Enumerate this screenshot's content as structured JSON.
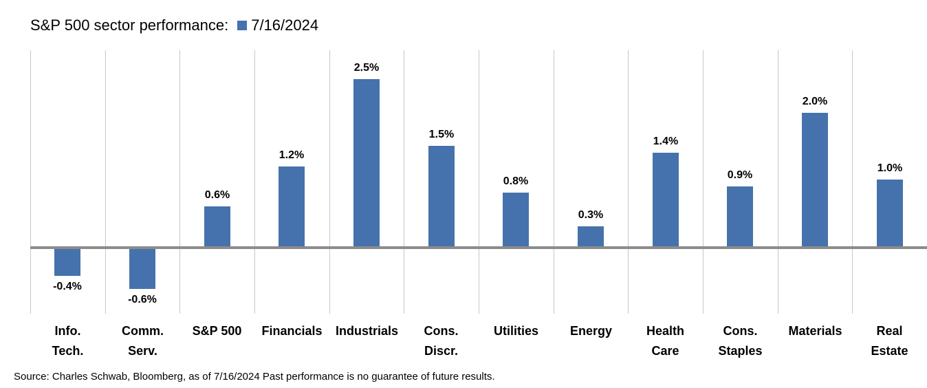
{
  "header": {
    "title": "S&P 500 sector performance:",
    "legend_label": "7/16/2024"
  },
  "chart_data": {
    "type": "bar",
    "title": "S&P 500 sector performance:",
    "series_name": "7/16/2024",
    "categories": [
      "Info. Tech.",
      "Comm. Serv.",
      "S&P 500",
      "Financials",
      "Industrials",
      "Cons. Discr.",
      "Utilities",
      "Energy",
      "Health Care",
      "Cons. Staples",
      "Materials",
      "Real Estate"
    ],
    "category_lines": [
      [
        "Info.",
        "Tech."
      ],
      [
        "Comm.",
        "Serv."
      ],
      [
        "S&P 500"
      ],
      [
        "Financials"
      ],
      [
        "Industrials"
      ],
      [
        "Cons.",
        "Discr."
      ],
      [
        "Utilities"
      ],
      [
        "Energy"
      ],
      [
        "Health",
        "Care"
      ],
      [
        "Cons.",
        "Staples"
      ],
      [
        "Materials"
      ],
      [
        "Real",
        "Estate"
      ]
    ],
    "values": [
      -0.4,
      -0.6,
      0.6,
      1.2,
      2.5,
      1.5,
      0.8,
      0.3,
      1.4,
      0.9,
      2.0,
      1.0
    ],
    "value_labels": [
      "-0.4%",
      "-0.6%",
      "0.6%",
      "1.2%",
      "2.5%",
      "1.5%",
      "0.8%",
      "0.3%",
      "1.4%",
      "0.9%",
      "2.0%",
      "1.0%"
    ],
    "unit": "%",
    "ylim": [
      -1.1,
      2.95
    ],
    "xlabel": "",
    "ylabel": "",
    "grid": "vertical-category-separators-only",
    "zero_line": true,
    "data_labels": "outside-end",
    "legend_position": "top-inline-with-title"
  },
  "colors": {
    "bar": "#4572AC",
    "zero_line": "#8C8C8C",
    "gridline": "#C7C7C7",
    "text": "#000000",
    "background": "#FFFFFF"
  },
  "footer": {
    "source": "Source: Charles Schwab, Bloomberg, as of 7/16/2024 Past performance is no guarantee of future results."
  }
}
